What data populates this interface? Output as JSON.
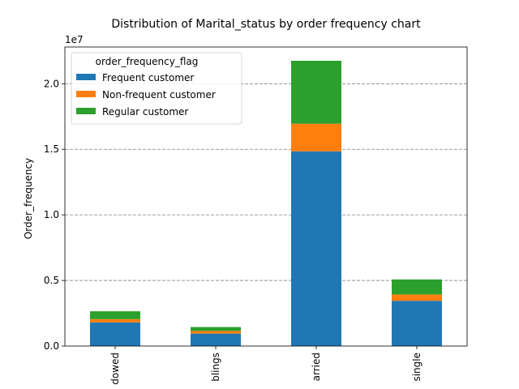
{
  "chart_data": {
    "type": "bar",
    "stacked": true,
    "title": "Distribution of Marital_status  by order frequency chart",
    "xlabel": "",
    "ylabel": "Order_frequency",
    "y_offset_label": "1e7",
    "y_scale": 10000000,
    "ylim": [
      0,
      22800000
    ],
    "yticks": [
      0,
      5000000,
      10000000,
      15000000,
      20000000
    ],
    "ytick_labels": [
      "0.0",
      "0.5",
      "1.0",
      "1.5",
      "2.0"
    ],
    "grid": "y-dashed",
    "categories": [
      "dowed",
      "blings",
      "arried",
      "single"
    ],
    "series": [
      {
        "name": "Frequent customer",
        "color": "#1f77b4",
        "values": [
          1800000,
          950000,
          14850000,
          3450000
        ]
      },
      {
        "name": "Non-frequent customer",
        "color": "#ff7f0e",
        "values": [
          250000,
          200000,
          2100000,
          480000
        ]
      },
      {
        "name": "Regular customer",
        "color": "#2ca02c",
        "values": [
          600000,
          300000,
          4800000,
          1150000
        ]
      }
    ],
    "legend": {
      "title": "order_frequency_flag",
      "position": "top-left"
    }
  }
}
